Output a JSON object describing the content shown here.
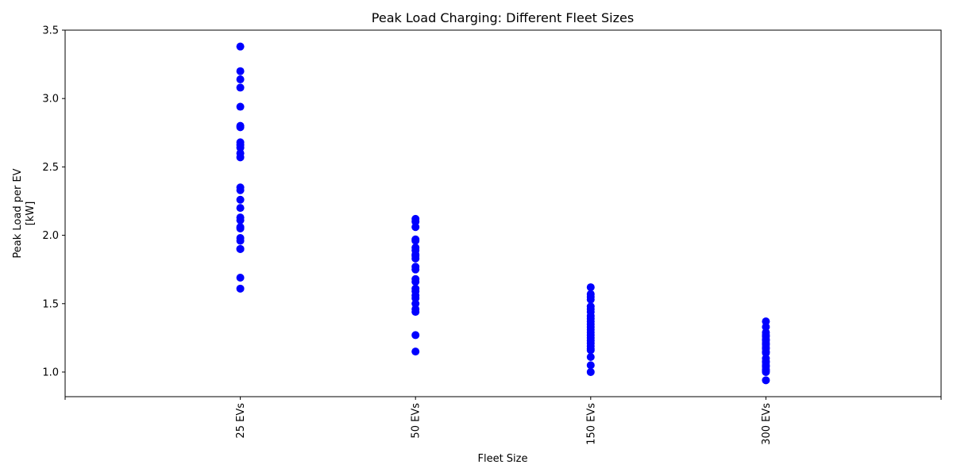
{
  "chart_data": {
    "type": "scatter",
    "title": "Peak Load Charging: Different Fleet Sizes",
    "xlabel": "Fleet Size",
    "ylabel_lines": [
      "Peak Load per EV",
      "[kW]"
    ],
    "categories": [
      "25 EVs",
      "50 EVs",
      "150 EVs",
      "300 EVs"
    ],
    "ylim": [
      0.82,
      3.5
    ],
    "yticks": [
      1.0,
      1.5,
      2.0,
      2.5,
      3.0,
      3.5
    ],
    "ytick_labels": [
      "1.0",
      "1.5",
      "2.0",
      "2.5",
      "3.0",
      "3.5"
    ],
    "grid": false,
    "marker_color": "#0000ff",
    "series": [
      {
        "category": "25 EVs",
        "values": [
          3.38,
          3.2,
          3.14,
          3.08,
          2.94,
          2.8,
          2.79,
          2.68,
          2.66,
          2.64,
          2.6,
          2.57,
          2.35,
          2.33,
          2.26,
          2.2,
          2.13,
          2.11,
          2.06,
          2.05,
          1.98,
          1.96,
          1.9,
          1.9,
          1.69,
          1.61
        ]
      },
      {
        "category": "50 EVs",
        "values": [
          2.12,
          2.1,
          2.06,
          1.97,
          1.96,
          1.91,
          1.89,
          1.86,
          1.85,
          1.83,
          1.77,
          1.75,
          1.68,
          1.66,
          1.61,
          1.59,
          1.56,
          1.54,
          1.5,
          1.46,
          1.44,
          1.27,
          1.15
        ]
      },
      {
        "category": "150 EVs",
        "values": [
          1.62,
          1.57,
          1.55,
          1.53,
          1.48,
          1.46,
          1.44,
          1.41,
          1.39,
          1.37,
          1.35,
          1.33,
          1.31,
          1.29,
          1.27,
          1.25,
          1.23,
          1.21,
          1.19,
          1.17,
          1.16,
          1.11,
          1.05,
          1.0
        ]
      },
      {
        "category": "300 EVs",
        "values": [
          1.37,
          1.33,
          1.29,
          1.27,
          1.26,
          1.24,
          1.23,
          1.21,
          1.2,
          1.18,
          1.17,
          1.15,
          1.14,
          1.1,
          1.08,
          1.07,
          1.05,
          1.04,
          1.02,
          1.01,
          1.0,
          0.94
        ]
      }
    ]
  }
}
